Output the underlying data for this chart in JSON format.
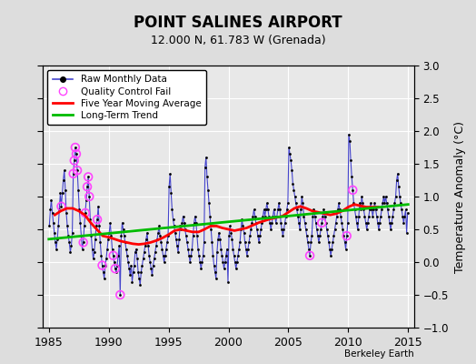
{
  "title": "POINT SALINES AIRPORT",
  "subtitle": "12.000 N, 61.783 W (Grenada)",
  "ylabel": "Temperature Anomaly (°C)",
  "credit": "Berkeley Earth",
  "xlim": [
    1984.5,
    2015.5
  ],
  "ylim": [
    -1.0,
    3.0
  ],
  "yticks": [
    -1.0,
    -0.5,
    0.0,
    0.5,
    1.0,
    1.5,
    2.0,
    2.5,
    3.0
  ],
  "xticks": [
    1985,
    1990,
    1995,
    2000,
    2005,
    2010,
    2015
  ],
  "bg_color": "#dddddd",
  "plot_bg_color": "#e8e8e8",
  "grid_color": "#ffffff",
  "raw_line_color": "#4444cc",
  "raw_dot_color": "#000000",
  "qc_fail_color": "#ff44ff",
  "moving_avg_color": "#ff0000",
  "trend_color": "#00bb00",
  "legend_labels": [
    "Raw Monthly Data",
    "Quality Control Fail",
    "Five Year Moving Average",
    "Long-Term Trend"
  ],
  "raw_data": [
    [
      1985.042,
      0.55
    ],
    [
      1985.125,
      0.8
    ],
    [
      1985.208,
      0.95
    ],
    [
      1985.292,
      0.75
    ],
    [
      1985.375,
      0.6
    ],
    [
      1985.458,
      0.45
    ],
    [
      1985.542,
      0.3
    ],
    [
      1985.625,
      0.2
    ],
    [
      1985.708,
      0.35
    ],
    [
      1985.792,
      0.55
    ],
    [
      1985.875,
      0.8
    ],
    [
      1985.958,
      1.05
    ],
    [
      1986.042,
      0.85
    ],
    [
      1986.125,
      1.05
    ],
    [
      1986.208,
      1.25
    ],
    [
      1986.292,
      1.4
    ],
    [
      1986.375,
      1.1
    ],
    [
      1986.458,
      0.75
    ],
    [
      1986.542,
      0.55
    ],
    [
      1986.625,
      0.4
    ],
    [
      1986.708,
      0.3
    ],
    [
      1986.792,
      0.15
    ],
    [
      1986.875,
      0.25
    ],
    [
      1986.958,
      0.45
    ],
    [
      1987.042,
      1.35
    ],
    [
      1987.125,
      1.55
    ],
    [
      1987.208,
      1.75
    ],
    [
      1987.292,
      1.65
    ],
    [
      1987.375,
      1.4
    ],
    [
      1987.458,
      1.1
    ],
    [
      1987.542,
      0.8
    ],
    [
      1987.625,
      0.6
    ],
    [
      1987.708,
      0.4
    ],
    [
      1987.792,
      0.2
    ],
    [
      1987.875,
      0.3
    ],
    [
      1987.958,
      0.55
    ],
    [
      1988.042,
      0.75
    ],
    [
      1988.125,
      0.95
    ],
    [
      1988.208,
      1.15
    ],
    [
      1988.292,
      1.3
    ],
    [
      1988.375,
      1.0
    ],
    [
      1988.458,
      0.65
    ],
    [
      1988.542,
      0.4
    ],
    [
      1988.625,
      0.2
    ],
    [
      1988.708,
      0.05
    ],
    [
      1988.792,
      0.15
    ],
    [
      1988.875,
      0.35
    ],
    [
      1988.958,
      0.55
    ],
    [
      1989.042,
      0.65
    ],
    [
      1989.125,
      0.85
    ],
    [
      1989.208,
      0.55
    ],
    [
      1989.292,
      0.3
    ],
    [
      1989.375,
      0.1
    ],
    [
      1989.458,
      -0.05
    ],
    [
      1989.542,
      -0.15
    ],
    [
      1989.625,
      -0.25
    ],
    [
      1989.708,
      -0.05
    ],
    [
      1989.792,
      0.05
    ],
    [
      1989.875,
      0.2
    ],
    [
      1989.958,
      0.35
    ],
    [
      1990.042,
      0.45
    ],
    [
      1990.125,
      0.6
    ],
    [
      1990.208,
      0.4
    ],
    [
      1990.292,
      0.2
    ],
    [
      1990.375,
      0.1
    ],
    [
      1990.458,
      0.0
    ],
    [
      1990.542,
      -0.1
    ],
    [
      1990.625,
      -0.15
    ],
    [
      1990.708,
      -0.05
    ],
    [
      1990.792,
      0.1
    ],
    [
      1990.875,
      0.25
    ],
    [
      1990.958,
      -0.5
    ],
    [
      1991.042,
      0.4
    ],
    [
      1991.125,
      0.6
    ],
    [
      1991.208,
      0.5
    ],
    [
      1991.292,
      0.4
    ],
    [
      1991.375,
      0.3
    ],
    [
      1991.458,
      0.2
    ],
    [
      1991.542,
      0.1
    ],
    [
      1991.625,
      0.0
    ],
    [
      1991.708,
      -0.1
    ],
    [
      1991.792,
      -0.2
    ],
    [
      1991.875,
      -0.05
    ],
    [
      1991.958,
      -0.3
    ],
    [
      1992.042,
      -0.15
    ],
    [
      1992.125,
      -0.05
    ],
    [
      1992.208,
      0.15
    ],
    [
      1992.292,
      0.2
    ],
    [
      1992.375,
      0.05
    ],
    [
      1992.458,
      -0.15
    ],
    [
      1992.542,
      -0.25
    ],
    [
      1992.625,
      -0.35
    ],
    [
      1992.708,
      -0.15
    ],
    [
      1992.792,
      -0.05
    ],
    [
      1992.875,
      0.05
    ],
    [
      1992.958,
      0.15
    ],
    [
      1993.042,
      0.25
    ],
    [
      1993.125,
      0.35
    ],
    [
      1993.208,
      0.45
    ],
    [
      1993.292,
      0.25
    ],
    [
      1993.375,
      0.1
    ],
    [
      1993.458,
      0.0
    ],
    [
      1993.542,
      -0.1
    ],
    [
      1993.625,
      -0.2
    ],
    [
      1993.708,
      -0.05
    ],
    [
      1993.792,
      0.05
    ],
    [
      1993.875,
      0.15
    ],
    [
      1993.958,
      0.25
    ],
    [
      1994.042,
      0.35
    ],
    [
      1994.125,
      0.45
    ],
    [
      1994.208,
      0.55
    ],
    [
      1994.292,
      0.4
    ],
    [
      1994.375,
      0.3
    ],
    [
      1994.458,
      0.2
    ],
    [
      1994.542,
      0.1
    ],
    [
      1994.625,
      0.0
    ],
    [
      1994.708,
      0.1
    ],
    [
      1994.792,
      0.2
    ],
    [
      1994.875,
      0.3
    ],
    [
      1994.958,
      0.4
    ],
    [
      1995.042,
      1.15
    ],
    [
      1995.125,
      1.35
    ],
    [
      1995.208,
      1.05
    ],
    [
      1995.292,
      0.8
    ],
    [
      1995.375,
      0.65
    ],
    [
      1995.458,
      0.55
    ],
    [
      1995.542,
      0.45
    ],
    [
      1995.625,
      0.35
    ],
    [
      1995.708,
      0.25
    ],
    [
      1995.792,
      0.15
    ],
    [
      1995.875,
      0.35
    ],
    [
      1995.958,
      0.55
    ],
    [
      1996.042,
      0.5
    ],
    [
      1996.125,
      0.6
    ],
    [
      1996.208,
      0.7
    ],
    [
      1996.292,
      0.6
    ],
    [
      1996.375,
      0.5
    ],
    [
      1996.458,
      0.4
    ],
    [
      1996.542,
      0.3
    ],
    [
      1996.625,
      0.2
    ],
    [
      1996.708,
      0.1
    ],
    [
      1996.792,
      0.0
    ],
    [
      1996.875,
      0.1
    ],
    [
      1996.958,
      0.2
    ],
    [
      1997.042,
      0.4
    ],
    [
      1997.125,
      0.6
    ],
    [
      1997.208,
      0.7
    ],
    [
      1997.292,
      0.6
    ],
    [
      1997.375,
      0.4
    ],
    [
      1997.458,
      0.2
    ],
    [
      1997.542,
      0.1
    ],
    [
      1997.625,
      0.0
    ],
    [
      1997.708,
      -0.1
    ],
    [
      1997.792,
      0.0
    ],
    [
      1997.875,
      0.1
    ],
    [
      1997.958,
      0.3
    ],
    [
      1998.042,
      1.45
    ],
    [
      1998.125,
      1.6
    ],
    [
      1998.208,
      1.3
    ],
    [
      1998.292,
      1.1
    ],
    [
      1998.375,
      0.9
    ],
    [
      1998.458,
      0.7
    ],
    [
      1998.542,
      0.5
    ],
    [
      1998.625,
      0.3
    ],
    [
      1998.708,
      0.1
    ],
    [
      1998.792,
      -0.05
    ],
    [
      1998.875,
      -0.15
    ],
    [
      1998.958,
      -0.25
    ],
    [
      1999.042,
      0.15
    ],
    [
      1999.125,
      0.35
    ],
    [
      1999.208,
      0.45
    ],
    [
      1999.292,
      0.35
    ],
    [
      1999.375,
      0.2
    ],
    [
      1999.458,
      0.1
    ],
    [
      1999.542,
      0.0
    ],
    [
      1999.625,
      -0.1
    ],
    [
      1999.708,
      0.0
    ],
    [
      1999.792,
      0.1
    ],
    [
      1999.875,
      0.2
    ],
    [
      1999.958,
      -0.3
    ],
    [
      2000.042,
      0.4
    ],
    [
      2000.125,
      0.55
    ],
    [
      2000.208,
      0.45
    ],
    [
      2000.292,
      0.35
    ],
    [
      2000.375,
      0.2
    ],
    [
      2000.458,
      0.1
    ],
    [
      2000.542,
      0.0
    ],
    [
      2000.625,
      -0.1
    ],
    [
      2000.708,
      0.0
    ],
    [
      2000.792,
      0.1
    ],
    [
      2000.875,
      0.2
    ],
    [
      2000.958,
      0.3
    ],
    [
      2001.042,
      0.5
    ],
    [
      2001.125,
      0.65
    ],
    [
      2001.208,
      0.55
    ],
    [
      2001.292,
      0.45
    ],
    [
      2001.375,
      0.3
    ],
    [
      2001.458,
      0.2
    ],
    [
      2001.542,
      0.1
    ],
    [
      2001.625,
      0.2
    ],
    [
      2001.708,
      0.3
    ],
    [
      2001.792,
      0.4
    ],
    [
      2001.875,
      0.5
    ],
    [
      2001.958,
      0.6
    ],
    [
      2002.042,
      0.7
    ],
    [
      2002.125,
      0.8
    ],
    [
      2002.208,
      0.7
    ],
    [
      2002.292,
      0.6
    ],
    [
      2002.375,
      0.5
    ],
    [
      2002.458,
      0.4
    ],
    [
      2002.542,
      0.3
    ],
    [
      2002.625,
      0.4
    ],
    [
      2002.708,
      0.5
    ],
    [
      2002.792,
      0.6
    ],
    [
      2002.875,
      0.7
    ],
    [
      2002.958,
      0.8
    ],
    [
      2003.042,
      0.7
    ],
    [
      2003.125,
      0.8
    ],
    [
      2003.208,
      0.9
    ],
    [
      2003.292,
      0.8
    ],
    [
      2003.375,
      0.7
    ],
    [
      2003.458,
      0.6
    ],
    [
      2003.542,
      0.5
    ],
    [
      2003.625,
      0.6
    ],
    [
      2003.708,
      0.7
    ],
    [
      2003.792,
      0.8
    ],
    [
      2003.875,
      0.7
    ],
    [
      2003.958,
      0.6
    ],
    [
      2004.042,
      0.7
    ],
    [
      2004.125,
      0.8
    ],
    [
      2004.208,
      0.9
    ],
    [
      2004.292,
      0.8
    ],
    [
      2004.375,
      0.6
    ],
    [
      2004.458,
      0.5
    ],
    [
      2004.542,
      0.4
    ],
    [
      2004.625,
      0.5
    ],
    [
      2004.708,
      0.6
    ],
    [
      2004.792,
      0.7
    ],
    [
      2004.875,
      0.8
    ],
    [
      2004.958,
      0.9
    ],
    [
      2005.042,
      1.75
    ],
    [
      2005.125,
      1.65
    ],
    [
      2005.208,
      1.55
    ],
    [
      2005.292,
      1.4
    ],
    [
      2005.375,
      1.2
    ],
    [
      2005.458,
      1.1
    ],
    [
      2005.542,
      1.0
    ],
    [
      2005.625,
      0.9
    ],
    [
      2005.708,
      0.8
    ],
    [
      2005.792,
      0.7
    ],
    [
      2005.875,
      0.6
    ],
    [
      2005.958,
      0.5
    ],
    [
      2006.042,
      0.8
    ],
    [
      2006.125,
      1.0
    ],
    [
      2006.208,
      0.9
    ],
    [
      2006.292,
      0.7
    ],
    [
      2006.375,
      0.6
    ],
    [
      2006.458,
      0.5
    ],
    [
      2006.542,
      0.4
    ],
    [
      2006.625,
      0.3
    ],
    [
      2006.708,
      0.2
    ],
    [
      2006.792,
      0.1
    ],
    [
      2006.875,
      0.3
    ],
    [
      2006.958,
      0.4
    ],
    [
      2007.042,
      0.7
    ],
    [
      2007.125,
      0.8
    ],
    [
      2007.208,
      0.7
    ],
    [
      2007.292,
      0.6
    ],
    [
      2007.375,
      0.5
    ],
    [
      2007.458,
      0.4
    ],
    [
      2007.542,
      0.3
    ],
    [
      2007.625,
      0.4
    ],
    [
      2007.708,
      0.5
    ],
    [
      2007.792,
      0.6
    ],
    [
      2007.875,
      0.7
    ],
    [
      2007.958,
      0.8
    ],
    [
      2008.042,
      0.7
    ],
    [
      2008.125,
      0.6
    ],
    [
      2008.208,
      0.5
    ],
    [
      2008.292,
      0.4
    ],
    [
      2008.375,
      0.3
    ],
    [
      2008.458,
      0.2
    ],
    [
      2008.542,
      0.1
    ],
    [
      2008.625,
      0.2
    ],
    [
      2008.708,
      0.3
    ],
    [
      2008.792,
      0.4
    ],
    [
      2008.875,
      0.5
    ],
    [
      2008.958,
      0.6
    ],
    [
      2009.042,
      0.7
    ],
    [
      2009.125,
      0.8
    ],
    [
      2009.208,
      0.9
    ],
    [
      2009.292,
      0.8
    ],
    [
      2009.375,
      0.7
    ],
    [
      2009.458,
      0.6
    ],
    [
      2009.542,
      0.5
    ],
    [
      2009.625,
      0.4
    ],
    [
      2009.708,
      0.3
    ],
    [
      2009.792,
      0.2
    ],
    [
      2009.875,
      0.4
    ],
    [
      2009.958,
      0.6
    ],
    [
      2010.042,
      1.95
    ],
    [
      2010.125,
      1.85
    ],
    [
      2010.208,
      1.55
    ],
    [
      2010.292,
      1.3
    ],
    [
      2010.375,
      1.1
    ],
    [
      2010.458,
      0.9
    ],
    [
      2010.542,
      0.8
    ],
    [
      2010.625,
      0.7
    ],
    [
      2010.708,
      0.6
    ],
    [
      2010.792,
      0.5
    ],
    [
      2010.875,
      0.7
    ],
    [
      2010.958,
      0.9
    ],
    [
      2011.042,
      0.8
    ],
    [
      2011.125,
      1.0
    ],
    [
      2011.208,
      0.9
    ],
    [
      2011.292,
      0.8
    ],
    [
      2011.375,
      0.7
    ],
    [
      2011.458,
      0.6
    ],
    [
      2011.542,
      0.5
    ],
    [
      2011.625,
      0.6
    ],
    [
      2011.708,
      0.7
    ],
    [
      2011.792,
      0.8
    ],
    [
      2011.875,
      0.9
    ],
    [
      2011.958,
      0.8
    ],
    [
      2012.042,
      0.7
    ],
    [
      2012.125,
      0.8
    ],
    [
      2012.208,
      0.9
    ],
    [
      2012.292,
      0.8
    ],
    [
      2012.375,
      0.7
    ],
    [
      2012.458,
      0.6
    ],
    [
      2012.542,
      0.5
    ],
    [
      2012.625,
      0.6
    ],
    [
      2012.708,
      0.7
    ],
    [
      2012.792,
      0.8
    ],
    [
      2012.875,
      0.9
    ],
    [
      2012.958,
      1.0
    ],
    [
      2013.042,
      0.9
    ],
    [
      2013.125,
      1.0
    ],
    [
      2013.208,
      0.9
    ],
    [
      2013.292,
      0.8
    ],
    [
      2013.375,
      0.7
    ],
    [
      2013.458,
      0.6
    ],
    [
      2013.542,
      0.5
    ],
    [
      2013.625,
      0.6
    ],
    [
      2013.708,
      0.7
    ],
    [
      2013.792,
      0.8
    ],
    [
      2013.875,
      0.9
    ],
    [
      2013.958,
      1.0
    ],
    [
      2014.042,
      1.25
    ],
    [
      2014.125,
      1.35
    ],
    [
      2014.208,
      1.15
    ],
    [
      2014.292,
      1.0
    ],
    [
      2014.375,
      0.9
    ],
    [
      2014.458,
      0.8
    ],
    [
      2014.542,
      0.7
    ],
    [
      2014.625,
      0.6
    ],
    [
      2014.708,
      0.7
    ],
    [
      2014.792,
      0.8
    ],
    [
      2014.875,
      0.45
    ],
    [
      2014.958,
      0.75
    ]
  ],
  "qc_fail_points": [
    [
      1986.042,
      0.85
    ],
    [
      1987.042,
      1.35
    ],
    [
      1987.125,
      1.55
    ],
    [
      1987.208,
      1.75
    ],
    [
      1987.292,
      1.65
    ],
    [
      1987.375,
      1.4
    ],
    [
      1987.875,
      0.3
    ],
    [
      1988.042,
      0.75
    ],
    [
      1988.208,
      1.15
    ],
    [
      1988.292,
      1.3
    ],
    [
      1988.375,
      1.0
    ],
    [
      1989.042,
      0.65
    ],
    [
      1989.458,
      -0.05
    ],
    [
      1990.375,
      0.1
    ],
    [
      1990.542,
      -0.1
    ],
    [
      1990.958,
      -0.5
    ],
    [
      2006.792,
      0.1
    ],
    [
      2007.792,
      0.6
    ],
    [
      2009.875,
      0.4
    ],
    [
      2010.375,
      1.1
    ]
  ],
  "moving_avg_x": [
    1985.5,
    1986.0,
    1986.5,
    1987.0,
    1987.5,
    1988.0,
    1988.5,
    1989.0,
    1989.5,
    1990.0,
    1990.5,
    1991.0,
    1991.5,
    1992.0,
    1992.5,
    1993.0,
    1993.5,
    1994.0,
    1994.5,
    1995.0,
    1995.5,
    1996.0,
    1996.5,
    1997.0,
    1997.5,
    1998.0,
    1998.5,
    1999.0,
    1999.5,
    2000.0,
    2000.5,
    2001.0,
    2001.5,
    2002.0,
    2002.5,
    2003.0,
    2003.5,
    2004.0,
    2004.5,
    2005.0,
    2005.5,
    2006.0,
    2006.5,
    2007.0,
    2007.5,
    2008.0,
    2008.5,
    2009.0,
    2009.5,
    2010.0,
    2010.5,
    2011.0,
    2011.5,
    2012.0,
    2012.5
  ],
  "moving_avg_y": [
    0.72,
    0.78,
    0.82,
    0.82,
    0.78,
    0.72,
    0.6,
    0.5,
    0.4,
    0.38,
    0.35,
    0.32,
    0.3,
    0.28,
    0.27,
    0.28,
    0.3,
    0.33,
    0.37,
    0.42,
    0.48,
    0.5,
    0.48,
    0.46,
    0.46,
    0.5,
    0.55,
    0.55,
    0.52,
    0.5,
    0.48,
    0.5,
    0.52,
    0.56,
    0.6,
    0.63,
    0.66,
    0.68,
    0.7,
    0.76,
    0.82,
    0.85,
    0.82,
    0.78,
    0.76,
    0.74,
    0.72,
    0.74,
    0.78,
    0.84,
    0.88,
    0.86,
    0.84,
    0.84,
    0.84
  ],
  "trend_x": [
    1985.0,
    2015.0
  ],
  "trend_y": [
    0.35,
    0.88
  ]
}
